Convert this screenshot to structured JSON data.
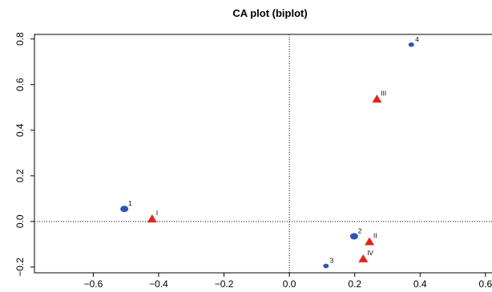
{
  "chart_data": {
    "type": "scatter",
    "title": "CA plot (biplot)",
    "xlabel": "",
    "ylabel": "",
    "xlim": [
      -0.78,
      0.62
    ],
    "ylim": [
      -0.225,
      0.82
    ],
    "x_ticks": [
      -0.6,
      -0.4,
      -0.2,
      0.0,
      0.2,
      0.4,
      0.6
    ],
    "x_tick_labels": [
      "−0.6",
      "−0.4",
      "−0.2",
      "0.0",
      "0.2",
      "0.4",
      "0.6"
    ],
    "y_ticks": [
      -0.2,
      0.0,
      0.2,
      0.4,
      0.6,
      0.8
    ],
    "y_tick_labels": [
      "−0.2",
      "0.0",
      "0.2",
      "0.4",
      "0.6",
      "0.8"
    ],
    "reference_lines": {
      "x": 0,
      "y": 0,
      "style": "dotted"
    },
    "grid": false,
    "series": [
      {
        "marker": "circle",
        "color": "#2b55b3",
        "points": [
          {
            "label": "1",
            "x": -0.505,
            "y": 0.055,
            "size": "large"
          },
          {
            "label": "2",
            "x": 0.198,
            "y": -0.065,
            "size": "large"
          },
          {
            "label": "3",
            "x": 0.112,
            "y": -0.195,
            "size": "small"
          },
          {
            "label": "4",
            "x": 0.373,
            "y": 0.775,
            "size": "small"
          }
        ]
      },
      {
        "marker": "triangle",
        "color": "#e0251f",
        "points": [
          {
            "label": "I",
            "x": -0.42,
            "y": 0.01
          },
          {
            "label": "II",
            "x": 0.245,
            "y": -0.09
          },
          {
            "label": "III",
            "x": 0.268,
            "y": 0.535
          },
          {
            "label": "IV",
            "x": 0.226,
            "y": -0.165
          }
        ]
      }
    ]
  }
}
